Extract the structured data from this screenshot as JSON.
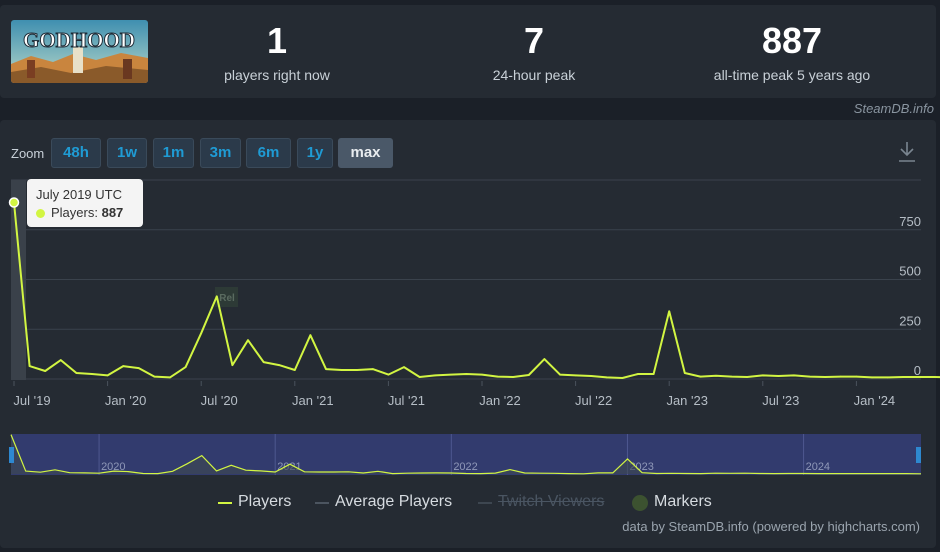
{
  "stats": [
    {
      "value": "1",
      "label": "players right now"
    },
    {
      "value": "7",
      "label": "24-hour peak"
    },
    {
      "value": "887",
      "label": "all-time peak 5 years ago"
    }
  ],
  "game": {
    "logo_text": "GODHOOD"
  },
  "credit": "SteamDB.info",
  "zoom": {
    "label": "Zoom",
    "buttons": [
      "48h",
      "1w",
      "1m",
      "3m",
      "6m",
      "1y",
      "max"
    ],
    "active": "max"
  },
  "tooltip": {
    "date": "July 2019 UTC",
    "series": "Players:",
    "value": "887"
  },
  "legend": {
    "players": "Players",
    "average": "Average Players",
    "twitch": "Twitch Viewers",
    "markers": "Markers"
  },
  "footer": "data by SteamDB.info (powered by highcharts.com)",
  "colors": {
    "players": "#d2f542",
    "background": "#1b2028",
    "panel": "#252b33",
    "accent": "#1f9bd4"
  },
  "chart_data": {
    "type": "line",
    "ylim": [
      0,
      1000
    ],
    "y_ticks": [
      0,
      250,
      500,
      750
    ],
    "x_ticks": [
      "Jul '19",
      "Jan '20",
      "Jul '20",
      "Jan '21",
      "Jul '21",
      "Jan '22",
      "Jul '22",
      "Jan '23",
      "Jul '23",
      "Jan '24"
    ],
    "navigator_labels": [
      "2020",
      "2021",
      "2022",
      "2023",
      "2024"
    ],
    "annotation": "Rel",
    "series": [
      {
        "name": "Players",
        "x": [
          "2019-07",
          "2019-08",
          "2019-09",
          "2019-10",
          "2019-11",
          "2019-12",
          "2020-01",
          "2020-02",
          "2020-03",
          "2020-04",
          "2020-05",
          "2020-06",
          "2020-07",
          "2020-08",
          "2020-09",
          "2020-10",
          "2020-11",
          "2020-12",
          "2021-01",
          "2021-02",
          "2021-03",
          "2021-04",
          "2021-05",
          "2021-06",
          "2021-07",
          "2021-08",
          "2021-09",
          "2021-10",
          "2021-11",
          "2021-12",
          "2022-01",
          "2022-02",
          "2022-03",
          "2022-04",
          "2022-05",
          "2022-06",
          "2022-07",
          "2022-08",
          "2022-09",
          "2022-10",
          "2022-11",
          "2022-12",
          "2023-01",
          "2023-02",
          "2023-03",
          "2023-04",
          "2023-05",
          "2023-06",
          "2023-07",
          "2023-08",
          "2023-09",
          "2023-10",
          "2023-11",
          "2023-12",
          "2024-01",
          "2024-02",
          "2024-03",
          "2024-04",
          "2024-05",
          "2024-06",
          "2024-07",
          "2024-08",
          "2024-09"
        ],
        "values": [
          887,
          65,
          40,
          95,
          30,
          25,
          18,
          65,
          55,
          12,
          8,
          60,
          230,
          415,
          70,
          195,
          85,
          70,
          45,
          220,
          50,
          45,
          45,
          50,
          22,
          60,
          10,
          18,
          22,
          25,
          22,
          12,
          10,
          20,
          100,
          22,
          18,
          15,
          8,
          5,
          25,
          25,
          340,
          30,
          12,
          16,
          12,
          10,
          18,
          15,
          18,
          12,
          10,
          12,
          12,
          8,
          8,
          10,
          10,
          10,
          8,
          10,
          4
        ]
      }
    ]
  }
}
